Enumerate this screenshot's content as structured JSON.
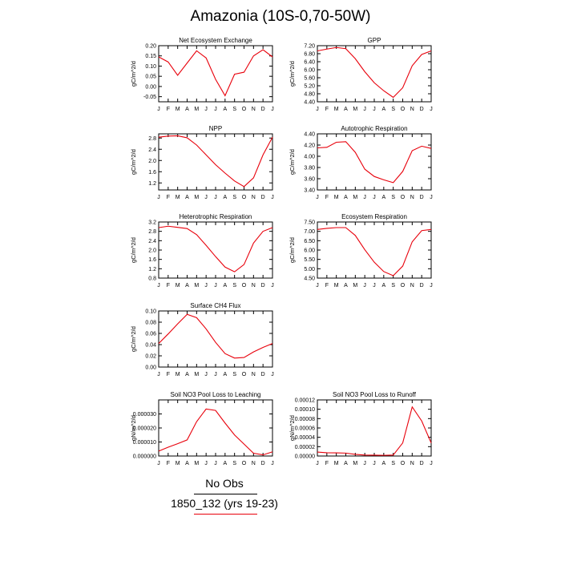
{
  "title": "Amazonia (10S-0,70-50W)",
  "legend": {
    "title": "No Obs",
    "series_label": "1850_132 (yrs 19-23)",
    "series_color": "#e8000b"
  },
  "months": [
    "J",
    "F",
    "M",
    "A",
    "M",
    "J",
    "J",
    "A",
    "S",
    "O",
    "N",
    "D",
    "J"
  ],
  "chart_data": [
    {
      "type": "line",
      "title": "Net Ecosystem Exchange",
      "ylabel": "gC/m^2/d",
      "ylim": [
        -0.075,
        0.2
      ],
      "yticks": [
        "-0.05",
        "0.00",
        "0.05",
        "0.10",
        "0.15",
        "0.20"
      ],
      "ytick_values": [
        -0.05,
        0,
        0.05,
        0.1,
        0.15,
        0.2
      ],
      "x": [
        "J",
        "F",
        "M",
        "A",
        "M",
        "J",
        "J",
        "A",
        "S",
        "O",
        "N",
        "D",
        "J"
      ],
      "series": [
        {
          "values": [
            0.145,
            0.12,
            0.055,
            0.115,
            0.175,
            0.14,
            0.035,
            -0.045,
            0.06,
            0.07,
            0.15,
            0.18,
            0.145
          ]
        }
      ]
    },
    {
      "type": "line",
      "title": "GPP",
      "ylabel": "gC/m^2/d",
      "ylim": [
        4.4,
        7.2
      ],
      "yticks": [
        "4.40",
        "4.80",
        "5.20",
        "5.60",
        "6.00",
        "6.40",
        "6.80",
        "7.20"
      ],
      "ytick_values": [
        4.4,
        4.8,
        5.2,
        5.6,
        6.0,
        6.4,
        6.8,
        7.2
      ],
      "x": [
        "J",
        "F",
        "M",
        "A",
        "M",
        "J",
        "J",
        "A",
        "S",
        "O",
        "N",
        "D",
        "J"
      ],
      "series": [
        {
          "values": [
            6.94,
            7.03,
            7.11,
            7.05,
            6.55,
            5.9,
            5.35,
            4.95,
            4.62,
            5.1,
            6.2,
            6.76,
            6.94
          ]
        }
      ]
    },
    {
      "type": "line",
      "title": "NPP",
      "ylabel": "gC/m^2/d",
      "ylim": [
        0.95,
        2.95
      ],
      "yticks": [
        "1.2",
        "1.6",
        "2.0",
        "2.4",
        "2.8"
      ],
      "ytick_values": [
        1.2,
        1.6,
        2.0,
        2.4,
        2.8
      ],
      "x": [
        "J",
        "F",
        "M",
        "A",
        "M",
        "J",
        "J",
        "A",
        "S",
        "O",
        "N",
        "D",
        "J"
      ],
      "series": [
        {
          "values": [
            2.83,
            2.87,
            2.88,
            2.81,
            2.55,
            2.2,
            1.85,
            1.55,
            1.27,
            1.07,
            1.38,
            2.2,
            2.83
          ]
        }
      ]
    },
    {
      "type": "line",
      "title": "Autotrophic Respiration",
      "ylabel": "gC/m^2/d",
      "ylim": [
        3.4,
        4.4
      ],
      "yticks": [
        "3.40",
        "3.60",
        "3.80",
        "4.00",
        "4.20",
        "4.40"
      ],
      "ytick_values": [
        3.4,
        3.6,
        3.8,
        4.0,
        4.2,
        4.4
      ],
      "x": [
        "J",
        "F",
        "M",
        "A",
        "M",
        "J",
        "J",
        "A",
        "S",
        "O",
        "N",
        "D",
        "J"
      ],
      "series": [
        {
          "values": [
            4.15,
            4.16,
            4.25,
            4.26,
            4.07,
            3.77,
            3.64,
            3.58,
            3.53,
            3.73,
            4.1,
            4.18,
            4.14
          ]
        }
      ]
    },
    {
      "type": "line",
      "title": "Heterotrophic Respiration",
      "ylabel": "gC/m^2/d",
      "ylim": [
        0.8,
        3.2
      ],
      "yticks": [
        "0.8",
        "1.2",
        "1.6",
        "2.0",
        "2.4",
        "2.8",
        "3.2"
      ],
      "ytick_values": [
        0.8,
        1.2,
        1.6,
        2.0,
        2.4,
        2.8,
        3.2
      ],
      "x": [
        "J",
        "F",
        "M",
        "A",
        "M",
        "J",
        "J",
        "A",
        "S",
        "O",
        "N",
        "D",
        "J"
      ],
      "series": [
        {
          "values": [
            2.96,
            3.02,
            2.97,
            2.92,
            2.66,
            2.2,
            1.72,
            1.27,
            1.07,
            1.38,
            2.3,
            2.8,
            2.96
          ]
        }
      ]
    },
    {
      "type": "line",
      "title": "Ecosystem Respiration",
      "ylabel": "gC/m^2/d",
      "ylim": [
        4.5,
        7.5
      ],
      "yticks": [
        "4.50",
        "5.00",
        "5.50",
        "6.00",
        "6.50",
        "7.00",
        "7.50"
      ],
      "ytick_values": [
        4.5,
        5.0,
        5.5,
        6.0,
        6.5,
        7.0,
        7.5
      ],
      "x": [
        "J",
        "F",
        "M",
        "A",
        "M",
        "J",
        "J",
        "A",
        "S",
        "O",
        "N",
        "D",
        "J"
      ],
      "series": [
        {
          "values": [
            7.1,
            7.16,
            7.2,
            7.2,
            6.78,
            6.02,
            5.35,
            4.85,
            4.63,
            5.14,
            6.44,
            7.04,
            7.1
          ]
        }
      ]
    },
    {
      "type": "line",
      "title": "Surface CH4 Flux",
      "ylabel": "gC/m^2/d",
      "ylim": [
        0,
        0.1
      ],
      "yticks": [
        "0.00",
        "0.02",
        "0.04",
        "0.06",
        "0.08",
        "0.10"
      ],
      "ytick_values": [
        0,
        0.02,
        0.04,
        0.06,
        0.08,
        0.1
      ],
      "x": [
        "J",
        "F",
        "M",
        "A",
        "M",
        "J",
        "J",
        "A",
        "S",
        "O",
        "N",
        "D",
        "J"
      ],
      "series": [
        {
          "values": [
            0.042,
            0.059,
            0.077,
            0.094,
            0.088,
            0.068,
            0.044,
            0.024,
            0.016,
            0.017,
            0.027,
            0.035,
            0.042
          ]
        }
      ]
    },
    {
      "type": "line",
      "title": "Soil NO3 Pool Loss to Leaching",
      "ylabel": "gN/m^2/d",
      "ylim": [
        0,
        4e-05
      ],
      "yticks": [
        "0.000000",
        "0.000010",
        "0.000020",
        "0.000030"
      ],
      "ytick_values": [
        0,
        1e-05,
        2e-05,
        3e-05
      ],
      "x": [
        "J",
        "F",
        "M",
        "A",
        "M",
        "J",
        "J",
        "A",
        "S",
        "O",
        "N",
        "D",
        "J"
      ],
      "series": [
        {
          "values": [
            3.5e-06,
            6.3e-06,
            8.8e-06,
            1.15e-05,
            2.45e-05,
            3.35e-05,
            3.25e-05,
            2.35e-05,
            1.5e-05,
            8.5e-06,
            2e-06,
            8e-07,
            3e-06
          ]
        }
      ]
    },
    {
      "type": "line",
      "title": "Soil NO3 Pool Loss to Runoff",
      "ylabel": "gN/m^2/d",
      "ylim": [
        0,
        0.00012
      ],
      "yticks": [
        "0.00000",
        "0.00002",
        "0.00004",
        "0.00006",
        "0.00008",
        "0.00010",
        "0.00012"
      ],
      "ytick_values": [
        0,
        2e-05,
        4e-05,
        6e-05,
        8e-05,
        0.0001,
        0.00012
      ],
      "x": [
        "J",
        "F",
        "M",
        "A",
        "M",
        "J",
        "J",
        "A",
        "S",
        "O",
        "N",
        "D",
        "J"
      ],
      "series": [
        {
          "values": [
            8.5e-06,
            7e-06,
            6.8e-06,
            6.2e-06,
            3.5e-06,
            2e-06,
            1.8e-06,
            1.5e-06,
            2e-06,
            2.8e-05,
            0.000105,
            7.5e-05,
            2.8e-05
          ]
        }
      ]
    }
  ]
}
